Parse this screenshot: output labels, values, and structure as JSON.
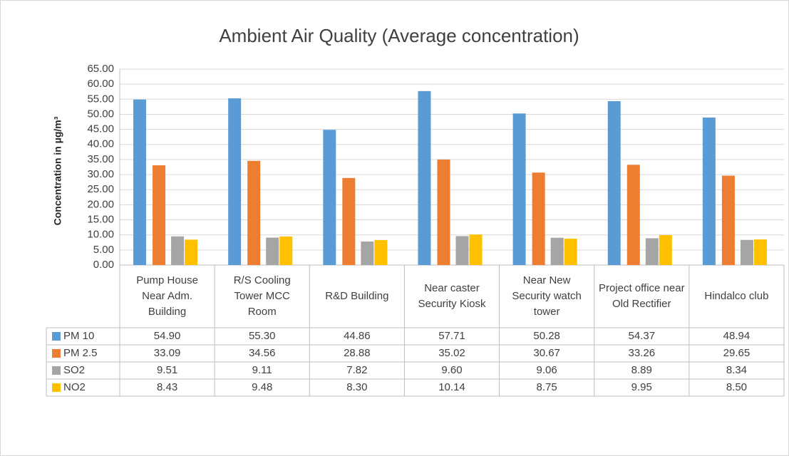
{
  "chart_data": {
    "type": "bar",
    "title": "Ambient Air Quality (Average concentration)",
    "y_label": "Concentration in µg/m³",
    "categories": [
      "Pump House Near Adm. Building",
      "R/S Cooling Tower MCC Room",
      "R&D Building",
      "Near caster Security Kiosk",
      "Near New Security watch tower",
      "Project office near Old Rectifier",
      "Hindalco club"
    ],
    "series": [
      {
        "name": "PM 10",
        "color": "#5b9bd5",
        "values": [
          54.9,
          55.3,
          44.86,
          57.71,
          50.28,
          54.37,
          48.94
        ],
        "value_labels": [
          "54.90",
          "55.30",
          "44.86",
          "57.71",
          "50.28",
          "54.37",
          "48.94"
        ]
      },
      {
        "name": "PM 2.5",
        "color": "#ed7d31",
        "values": [
          33.09,
          34.56,
          28.88,
          35.02,
          30.67,
          33.26,
          29.65
        ],
        "value_labels": [
          "33.09",
          "34.56",
          "28.88",
          "35.02",
          "30.67",
          "33.26",
          "29.65"
        ]
      },
      {
        "name": "SO2",
        "color": "#a5a5a5",
        "values": [
          9.51,
          9.11,
          7.82,
          9.6,
          9.06,
          8.89,
          8.34
        ],
        "value_labels": [
          "9.51",
          "9.11",
          "7.82",
          "9.60",
          "9.06",
          "8.89",
          "8.34"
        ]
      },
      {
        "name": "NO2",
        "color": "#ffc000",
        "values": [
          8.43,
          9.48,
          8.3,
          10.14,
          8.75,
          9.95,
          8.5
        ],
        "value_labels": [
          "8.43",
          "9.48",
          "8.30",
          "10.14",
          "8.75",
          "9.95",
          "8.50"
        ]
      }
    ],
    "ylim": [
      0,
      65
    ],
    "yticks": [
      {
        "value": 0,
        "label": "0.00"
      },
      {
        "value": 5,
        "label": "5.00"
      },
      {
        "value": 10,
        "label": "10.00"
      },
      {
        "value": 15,
        "label": "15.00"
      },
      {
        "value": 20,
        "label": "20.00"
      },
      {
        "value": 25,
        "label": "25.00"
      },
      {
        "value": 30,
        "label": "30.00"
      },
      {
        "value": 35,
        "label": "35.00"
      },
      {
        "value": 40,
        "label": "40.00"
      },
      {
        "value": 45,
        "label": "45.00"
      },
      {
        "value": 50,
        "label": "50.00"
      },
      {
        "value": 55,
        "label": "55.00"
      },
      {
        "value": 60,
        "label": "60.00"
      },
      {
        "value": 65,
        "label": "65.00"
      }
    ],
    "grid": true
  }
}
